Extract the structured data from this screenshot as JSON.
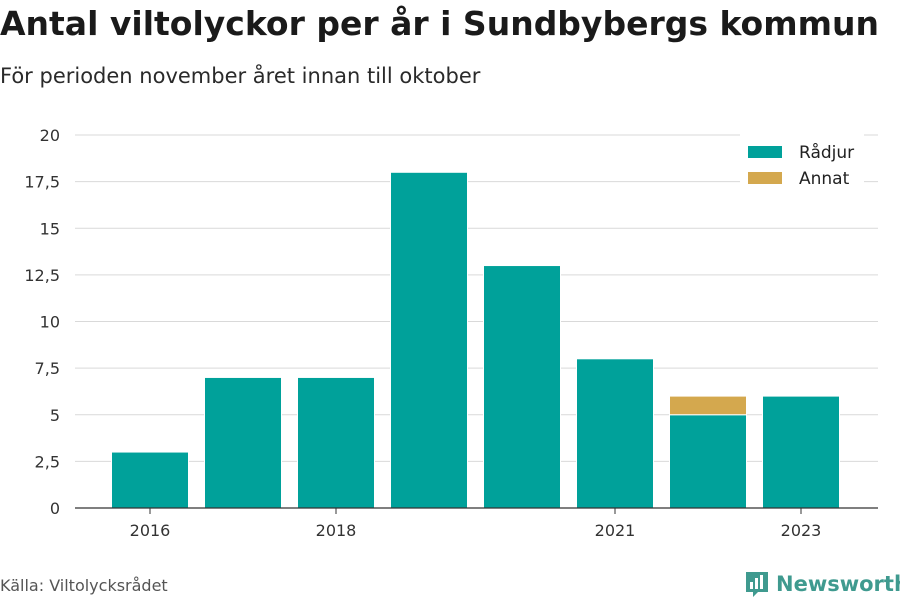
{
  "header": {
    "title": "Antal viltolyckor per år i Sundbybergs kommun",
    "subtitle": "För perioden november året innan till oktober"
  },
  "footer": {
    "source": "Källa: Viltolycksrådet",
    "brand": "Newsworthy",
    "brand_color": "#3f9a8f"
  },
  "chart_data": {
    "type": "bar",
    "stacked": true,
    "categories": [
      "2016",
      "2017",
      "2018",
      "2019",
      "2020",
      "2021",
      "2022",
      "2023"
    ],
    "x_tick_labels": [
      "2016",
      "",
      "2018",
      "",
      "",
      "2021",
      "",
      "2023"
    ],
    "series": [
      {
        "name": "Rådjur",
        "color": "#00a19a",
        "values": [
          3,
          7,
          7,
          18,
          13,
          8,
          5,
          6
        ]
      },
      {
        "name": "Annat",
        "color": "#d4a84e",
        "values": [
          0,
          0,
          0,
          0,
          0,
          0,
          1,
          0
        ]
      }
    ],
    "y_ticks": [
      "0",
      "2,5",
      "5",
      "7,5",
      "10",
      "12,5",
      "15",
      "17,5",
      "20"
    ],
    "ylim": [
      0,
      20
    ],
    "grid": true,
    "legend_position": "top-right"
  }
}
